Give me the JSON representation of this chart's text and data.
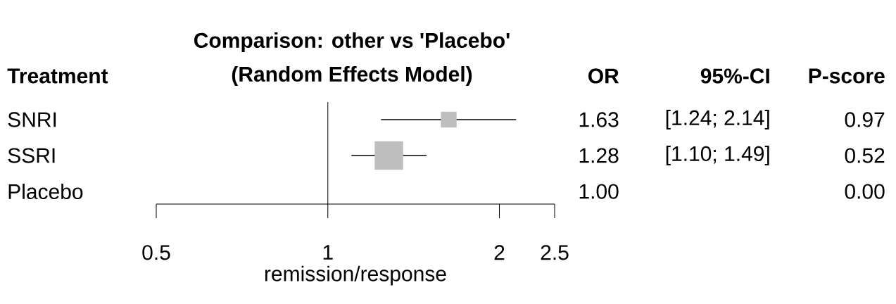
{
  "chart_data": {
    "type": "bubble",
    "orientation": "horizontal",
    "title": "Comparison: other vs 'Placebo'",
    "subtitle": "(Random Effects Model)",
    "ylabel": "Treatment",
    "xlabel": "remission/response",
    "categories": [
      "SNRI",
      "SSRI",
      "Placebo"
    ],
    "values": [
      1.63,
      1.28,
      null
    ],
    "errors": [
      [
        1.24,
        2.14
      ],
      [
        1.1,
        1.49
      ],
      null
    ],
    "sizes": [
      0.3,
      1,
      null
    ],
    "value_labels": [
      "1.63",
      "1.28",
      "1.00"
    ],
    "color": "#bebebe",
    "marker": "square",
    "log": "x",
    "xlim": [
      0.5,
      2.5
    ],
    "xticks": [
      0.5,
      1,
      2,
      2.5
    ],
    "ref_lines": [
      {
        "axis": "x",
        "value": 1
      }
    ],
    "annotations": [
      "OR",
      "95%-CI",
      "P-score",
      "[1.24; 2.14]",
      "[1.10; 1.49]",
      "0.97",
      "0.52",
      "0.00"
    ]
  }
}
